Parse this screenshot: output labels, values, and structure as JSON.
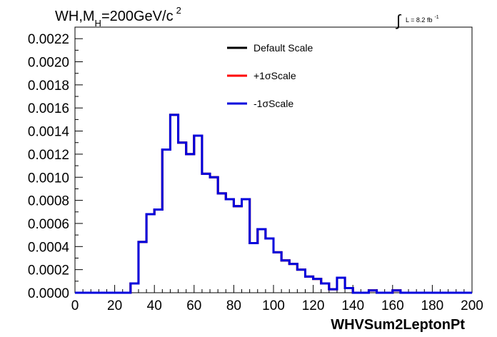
{
  "chart_data": {
    "type": "line",
    "title": {
      "prefix": "WH,M",
      "subscript": "H",
      "mid": "=200GeV/c",
      "superscript": "2"
    },
    "lumi": {
      "integral_symbol": "∫",
      "text": "L = 8.2 fb",
      "superscript": "-1"
    },
    "xlabel": "WHVSum2LeptonPt",
    "ylabel": "",
    "xlim": [
      0,
      200
    ],
    "ylim": [
      0,
      0.0023
    ],
    "xticks": [
      0,
      20,
      40,
      60,
      80,
      100,
      120,
      140,
      160,
      180,
      200
    ],
    "xtick_labels": [
      "0",
      "20",
      "40",
      "60",
      "80",
      "100",
      "120",
      "140",
      "160",
      "180",
      "200"
    ],
    "yticks": [
      0,
      0.0002,
      0.0004,
      0.0006,
      0.0008,
      0.001,
      0.0012,
      0.0014,
      0.0016,
      0.0018,
      0.002,
      0.0022
    ],
    "ytick_labels": [
      "0.0000",
      "0.0002",
      "0.0004",
      "0.0006",
      "0.0008",
      "0.0010",
      "0.0012",
      "0.0014",
      "0.0016",
      "0.0018",
      "0.0020",
      "0.0022"
    ],
    "grid": false,
    "legend_position": "top-right",
    "bin_edges": [
      0,
      4,
      8,
      12,
      16,
      20,
      24,
      28,
      32,
      36,
      40,
      44,
      48,
      52,
      56,
      60,
      64,
      68,
      72,
      76,
      80,
      84,
      88,
      92,
      96,
      100,
      104,
      108,
      112,
      116,
      120,
      124,
      128,
      132,
      136,
      140,
      144,
      148,
      152,
      156,
      160,
      164,
      168,
      172,
      176,
      180,
      184,
      188,
      192,
      196,
      200
    ],
    "series": [
      {
        "name": "Default Scale",
        "color": "#000000",
        "values": [
          0,
          0,
          0,
          0,
          0,
          0,
          0,
          8e-05,
          0.00044,
          0.00068,
          0.00072,
          0.00124,
          0.00154,
          0.0013,
          0.0012,
          0.00136,
          0.00103,
          0.001,
          0.00086,
          0.00081,
          0.00075,
          0.00081,
          0.00043,
          0.00055,
          0.00047,
          0.00035,
          0.00028,
          0.00025,
          0.0002,
          0.00014,
          0.00012,
          8e-05,
          3e-05,
          0.00013,
          4e-05,
          0,
          0,
          2e-05,
          0,
          0,
          2e-05,
          0,
          0,
          0,
          0,
          0,
          0,
          0,
          0,
          0
        ]
      },
      {
        "name": "+1σScale",
        "color": "#ff0000",
        "values": [
          0,
          0,
          0,
          0,
          0,
          0,
          0,
          8e-05,
          0.00044,
          0.00068,
          0.00072,
          0.00124,
          0.00154,
          0.0013,
          0.0012,
          0.00136,
          0.00103,
          0.001,
          0.00086,
          0.00081,
          0.00075,
          0.00081,
          0.00043,
          0.00055,
          0.00047,
          0.00035,
          0.00028,
          0.00025,
          0.0002,
          0.00014,
          0.00012,
          8e-05,
          3e-05,
          0.00013,
          4e-05,
          0,
          0,
          2e-05,
          0,
          0,
          2e-05,
          0,
          0,
          0,
          0,
          0,
          0,
          0,
          0,
          0
        ]
      },
      {
        "name": "-1σScale",
        "color": "#0000dd",
        "values": [
          0,
          0,
          0,
          0,
          0,
          0,
          0,
          8e-05,
          0.00044,
          0.00068,
          0.00072,
          0.00124,
          0.00154,
          0.0013,
          0.0012,
          0.00136,
          0.00103,
          0.001,
          0.00086,
          0.00081,
          0.00075,
          0.00081,
          0.00043,
          0.00055,
          0.00047,
          0.00035,
          0.00028,
          0.00025,
          0.0002,
          0.00014,
          0.00012,
          8e-05,
          3e-05,
          0.00013,
          4e-05,
          0,
          0,
          2e-05,
          0,
          0,
          2e-05,
          0,
          0,
          0,
          0,
          0,
          0,
          0,
          0,
          0
        ]
      }
    ]
  }
}
